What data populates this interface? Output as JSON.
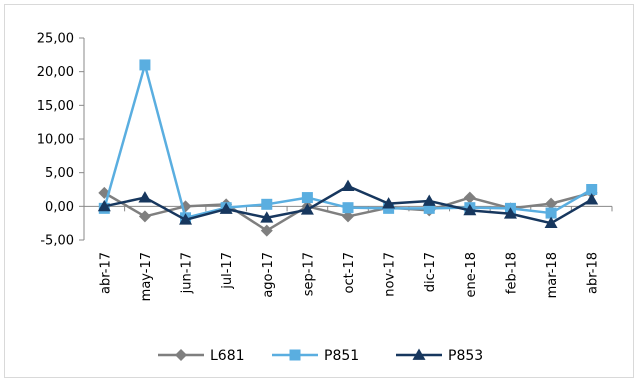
{
  "chart_data": {
    "type": "line",
    "categories": [
      "abr-17",
      "may-17",
      "jun-17",
      "jul-17",
      "ago-17",
      "sep-17",
      "oct-17",
      "nov-17",
      "dic-17",
      "ene-18",
      "feb-18",
      "mar-18",
      "abr-18"
    ],
    "series": [
      {
        "name": "L681",
        "color": "#7f7f7f",
        "marker": "diamond",
        "values": [
          2.0,
          -1.5,
          0.0,
          0.3,
          -3.6,
          0.0,
          -1.5,
          -0.2,
          -0.6,
          1.3,
          -0.3,
          0.4,
          2.0
        ]
      },
      {
        "name": "P851",
        "color": "#5aaee0",
        "marker": "square",
        "values": [
          -0.3,
          21.0,
          -1.7,
          -0.2,
          0.3,
          1.3,
          -0.2,
          -0.3,
          -0.3,
          -0.2,
          -0.3,
          -1.0,
          2.5
        ]
      },
      {
        "name": "P853",
        "color": "#17375e",
        "marker": "triangle",
        "values": [
          0.0,
          1.3,
          -2.0,
          -0.4,
          -1.7,
          -0.5,
          3.0,
          0.4,
          0.8,
          -0.6,
          -1.1,
          -2.5,
          1.0
        ]
      }
    ],
    "yticks": [
      "25,00",
      "20,00",
      "15,00",
      "10,00",
      "5,00",
      "0,00",
      "-5,00"
    ],
    "ylim": [
      -5,
      25
    ],
    "legend_position": "bottom",
    "grid": false
  }
}
